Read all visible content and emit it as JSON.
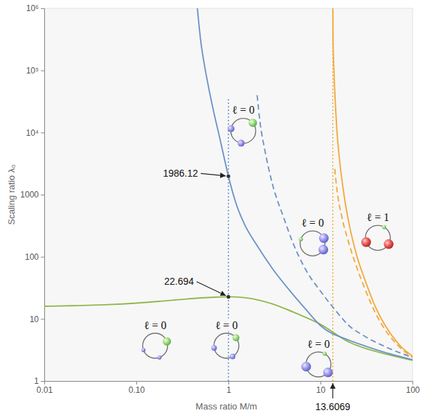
{
  "chart_data": {
    "type": "line",
    "x_label": "Mass ratio M/m",
    "y_label": "Scaling ratio λ₀",
    "log": true,
    "grid": false,
    "xlim": [
      0.01,
      100
    ],
    "ylim": [
      1,
      1000000
    ],
    "xticks": [
      0.01,
      {
        "value": 0.1,
        "label": "0.10"
      },
      1,
      10,
      100
    ],
    "yticks": [
      1,
      10,
      100,
      1000,
      {
        "value": 10000,
        "label": "10⁴"
      },
      {
        "value": 100000,
        "label": "10⁵"
      },
      {
        "value": 1000000,
        "label": "10⁶"
      }
    ],
    "series": [
      {
        "color": "#4f86d0",
        "line_style": "dotted",
        "x": [
          1,
          1
        ],
        "values": [
          1,
          35000
        ]
      },
      {
        "color": "#f5a623",
        "line_style": "dotted",
        "x": [
          13.6069,
          13.6069
        ],
        "values": [
          1,
          1000000
        ]
      },
      {
        "color": "#8fb74a",
        "line_style": "solid",
        "x": [
          0.01,
          0.02,
          0.05,
          0.1,
          0.2,
          0.3,
          0.5,
          0.7,
          1,
          1.5,
          2,
          3,
          5,
          7,
          10,
          20,
          30,
          50,
          100
        ],
        "values": [
          16,
          16.3,
          17,
          18,
          19.5,
          20.5,
          21.8,
          22.4,
          22.694,
          22,
          20.5,
          17.5,
          13,
          10.5,
          8.2,
          4.3,
          3.4,
          2.75,
          2.15
        ]
      },
      {
        "color": "#6d93c7",
        "line_style": "solid",
        "x": [
          0.46,
          0.5,
          0.55,
          0.6,
          0.7,
          0.8,
          0.9,
          1,
          1.2,
          1.5,
          2,
          3,
          5,
          7,
          10,
          20,
          30,
          50,
          100
        ],
        "values": [
          1000000,
          300000,
          120000,
          60000,
          20000,
          8500,
          3900,
          1986.12,
          750,
          330,
          160,
          65,
          25,
          14,
          7.8,
          4.6,
          3.7,
          2.9,
          2.2
        ]
      },
      {
        "color": "#6d93c7",
        "line_style": "dashed",
        "x": [
          2.05,
          2.2,
          2.5,
          3,
          4,
          5,
          7,
          10,
          15,
          20,
          30,
          50,
          100
        ],
        "values": [
          40000,
          15000,
          5000,
          1500,
          420,
          170,
          60,
          28,
          13,
          8,
          5.3,
          3.6,
          2.4
        ]
      },
      {
        "color": "#f3a93c",
        "line_style": "solid",
        "x": [
          13.62,
          13.7,
          14,
          14.5,
          15,
          16,
          18,
          20,
          25,
          30,
          40,
          50,
          70,
          100
        ],
        "values": [
          1000000,
          300000,
          100000,
          30000,
          12000,
          4000,
          1000,
          400,
          100,
          45,
          15,
          8,
          4,
          2.5
        ]
      },
      {
        "color": "#f3a93c",
        "line_style": "dashed",
        "x": [
          14.3,
          15,
          17,
          20,
          25,
          30,
          40,
          50,
          70,
          100
        ],
        "values": [
          2600,
          1300,
          450,
          180,
          65,
          32,
          12,
          6.8,
          3.7,
          2.4
        ]
      }
    ],
    "annotations": [
      {
        "text": "1986.12",
        "x": 1,
        "y": 1986.12
      },
      {
        "text": "22.694",
        "x": 1,
        "y": 22.694
      },
      {
        "text": "13.6069",
        "x": 13.6069
      }
    ],
    "region_labels": [
      {
        "text": "ℓ = 0",
        "x": 1.45,
        "y": 23000
      },
      {
        "text": "ℓ = 0",
        "x": 8.2,
        "y": 355
      },
      {
        "text": "ℓ = 0",
        "x": 0.16,
        "y": 8
      },
      {
        "text": "ℓ = 0",
        "x": 0.95,
        "y": 8
      },
      {
        "text": "ℓ = 0",
        "x": 9.5,
        "y": 4
      },
      {
        "text": "ℓ = 1",
        "x": 42,
        "y": 436
      }
    ]
  }
}
